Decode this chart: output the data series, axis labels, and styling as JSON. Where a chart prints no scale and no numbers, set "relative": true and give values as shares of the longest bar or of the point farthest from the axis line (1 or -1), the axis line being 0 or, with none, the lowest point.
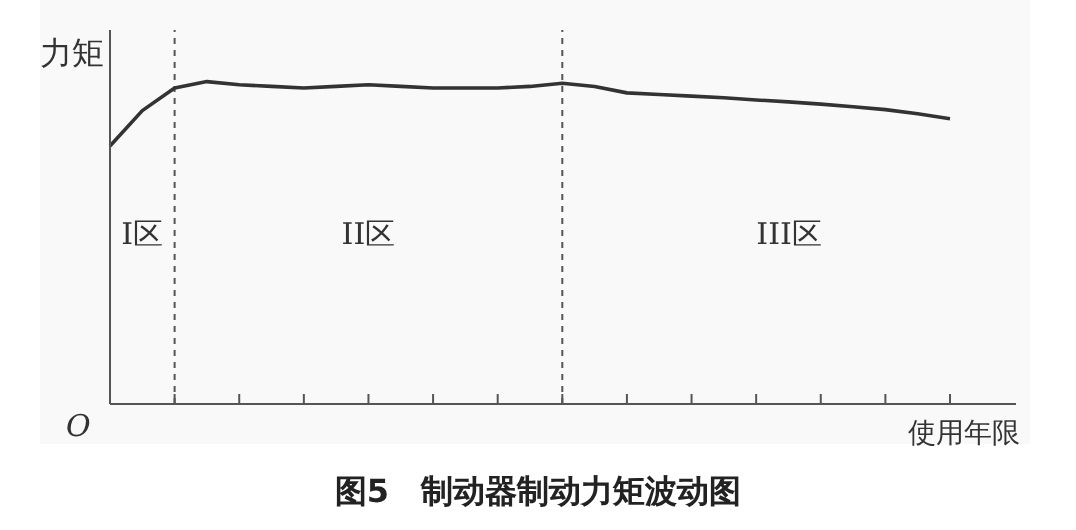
{
  "chart_data": {
    "type": "line",
    "title": "图5　制动器制动力矩波动图",
    "xlabel": "使用年限",
    "ylabel": "力矩",
    "relative": true,
    "categories": [
      null,
      null,
      null,
      null,
      null,
      null,
      null,
      null,
      null,
      null,
      null,
      null,
      null,
      null,
      null,
      null,
      null,
      null,
      null,
      null,
      null,
      null,
      null,
      null,
      null,
      null,
      null
    ],
    "series": [
      {
        "color": "#333333",
        "values": [
          0.8,
          0.91,
          0.98,
          1,
          0.99,
          0.985,
          0.98,
          0.985,
          0.99,
          0.985,
          0.98,
          0.98,
          0.98,
          0.985,
          0.995,
          0.985,
          0.965,
          0.96,
          0.955,
          0.95,
          0.943,
          0.937,
          0.93,
          0.922,
          0.913,
          0.9,
          0.885
        ]
      }
    ],
    "annotations": [
      "I区",
      "II区",
      "III区",
      "O"
    ],
    "marker": "none",
    "line_style": "solid"
  }
}
